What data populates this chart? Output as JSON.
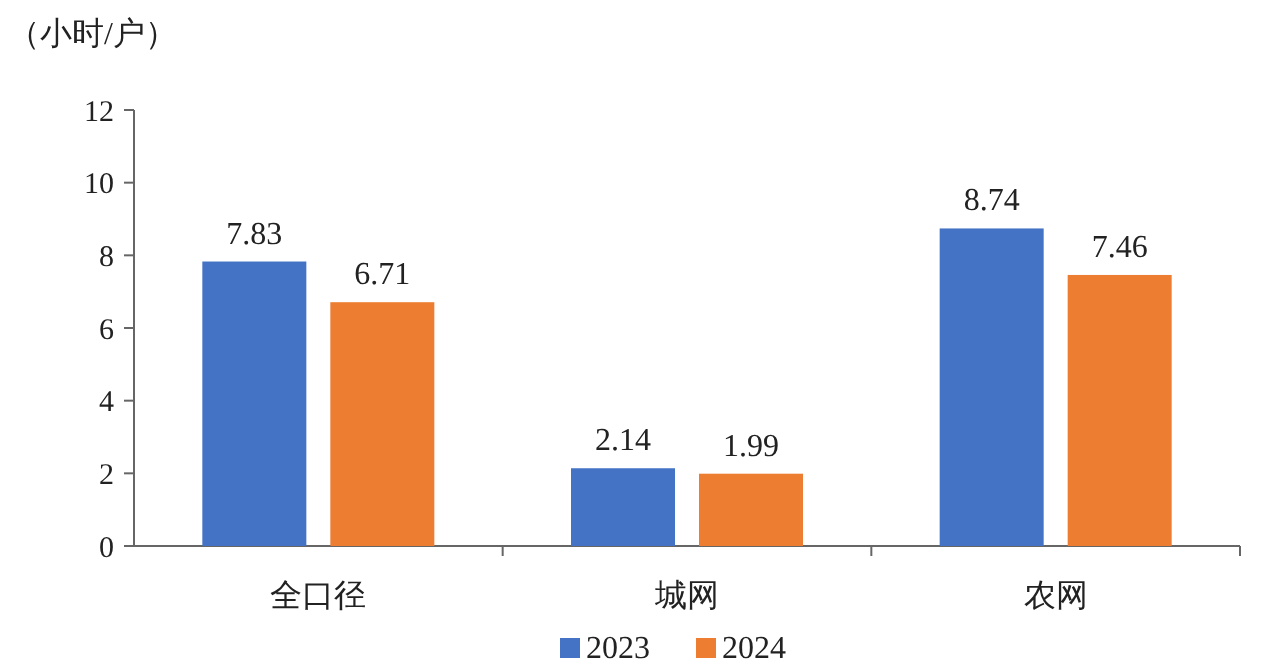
{
  "chart_data": {
    "type": "bar",
    "ylabel": "（小时/户）",
    "categories": [
      "全口径",
      "城网",
      "农网"
    ],
    "series": [
      {
        "name": "2023",
        "color": "#4472c4",
        "values": [
          7.83,
          2.14,
          8.74
        ]
      },
      {
        "name": "2024",
        "color": "#ed7d31",
        "values": [
          6.71,
          1.99,
          7.46
        ]
      }
    ],
    "ylim": [
      0,
      12
    ],
    "yticks": [
      0,
      2,
      4,
      6,
      8,
      10,
      12
    ],
    "data_labels": true,
    "legend": "bottom",
    "grid": false
  }
}
